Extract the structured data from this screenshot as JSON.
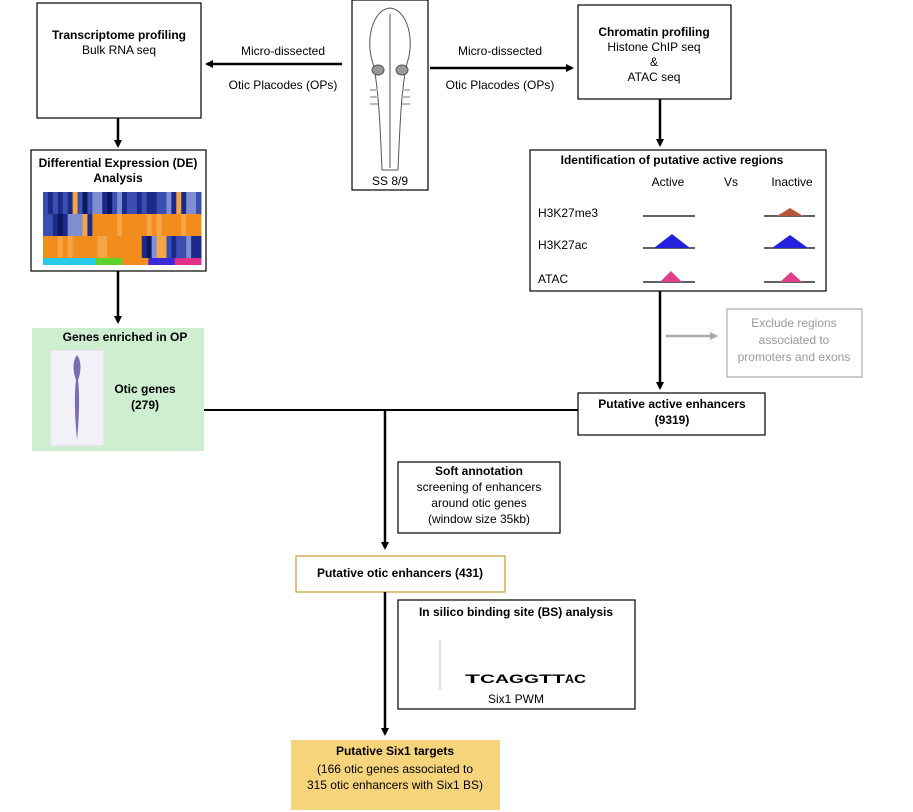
{
  "transcriptome": {
    "title": "Transcriptome profiling",
    "subtitle": "Bulk RNA seq"
  },
  "left_arrow": {
    "line1": "Micro-dissected",
    "line2": "Otic Placodes (OPs)"
  },
  "right_arrow": {
    "line1": "Micro-dissected",
    "line2": "Otic Placodes (OPs)"
  },
  "embryo": {
    "label": "SS 8/9"
  },
  "chromatin": {
    "title": "Chromatin profiling",
    "lines": [
      "Histone ChIP seq",
      "&",
      "ATAC seq"
    ]
  },
  "de": {
    "lines": [
      "Differential Expression (DE)",
      "Analysis"
    ]
  },
  "genes": {
    "title": "Genes enriched in OP",
    "label": "Otic genes",
    "count": "(279)"
  },
  "regions": {
    "title": "Identification of putative active regions",
    "columns": [
      "Active",
      "Vs",
      "Inactive"
    ],
    "rows": [
      "H3K27me3",
      "H3K27ac",
      "ATAC"
    ]
  },
  "exclude": {
    "lines": [
      "Exclude regions",
      "associated to",
      "promoters and exons"
    ]
  },
  "enhancers": {
    "lines": [
      "Putative active enhancers",
      "(9319)"
    ]
  },
  "soft": {
    "title": "Soft annotation",
    "lines": [
      "screening of enhancers",
      "around otic genes",
      "(window size 35kb)"
    ]
  },
  "otic_enhancers": {
    "label": "Putative otic enhancers (431)"
  },
  "insilico": {
    "title": "In silico binding site (BS) analysis",
    "motif": [
      "T",
      "C",
      "A",
      "G",
      "G",
      "T",
      "T",
      "A",
      "C"
    ],
    "caption": "Six1 PWM"
  },
  "targets": {
    "title": "Putative Six1 targets",
    "lines": [
      "(166 otic genes associated to",
      "315 otic enhancers with Six1 BS)"
    ]
  }
}
